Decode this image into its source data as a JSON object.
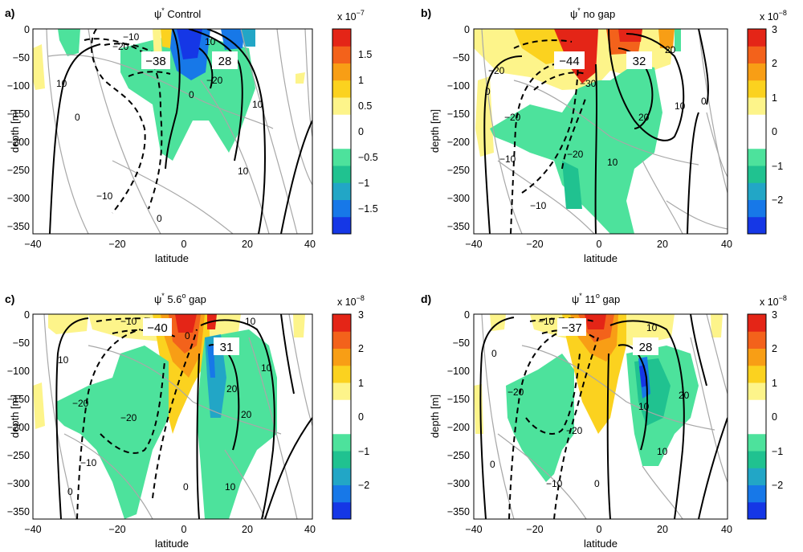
{
  "figure": {
    "colors": {
      "scale": [
        "#1537e6",
        "#1778e8",
        "#22a6c6",
        "#20c290",
        "#4de29c",
        "#ffffff",
        "#fdf48a",
        "#fbd21f",
        "#f89e15",
        "#f3621b",
        "#e42517"
      ],
      "contour": "#000000",
      "background_contour": "#a8a8a8"
    },
    "panels": [
      {
        "label": "a)",
        "title_prefix": "ψ",
        "title_star": "*",
        "title_rest": " Control",
        "xlabel": "latitude",
        "ylabel": "depth [m]",
        "xticks": [
          "−40",
          "−20",
          "0",
          "20",
          "40"
        ],
        "yticks": [
          "0",
          "−50",
          "−100",
          "−150",
          "−200",
          "−250",
          "−300",
          "−350"
        ],
        "colorbar_exponent_base": "x 10",
        "colorbar_exponent": "−7",
        "colorbar_ticks": [
          "1.5",
          "1",
          "0.5",
          "0",
          "−0.5",
          "−1",
          "−1.5"
        ],
        "extrema": [
          "−38",
          "28"
        ],
        "contour_labels": [
          "−10",
          "−20",
          "10",
          "0",
          "−10",
          "10",
          "0",
          "0",
          "10",
          "10",
          "−20"
        ]
      },
      {
        "label": "b)",
        "title_prefix": "ψ",
        "title_star": "*",
        "title_rest": " no gap",
        "xlabel": "latitude",
        "ylabel": "depth [m]",
        "xticks": [
          "−40",
          "−20",
          "0",
          "20",
          "40"
        ],
        "yticks": [
          "0",
          "−50",
          "−100",
          "−150",
          "−200",
          "−250",
          "−300",
          "−350"
        ],
        "colorbar_exponent_base": "x 10",
        "colorbar_exponent": "−8",
        "colorbar_ticks": [
          "3",
          "2",
          "1",
          "0",
          "−1",
          "−2"
        ],
        "extrema": [
          "−44",
          "32"
        ],
        "contour_labels": [
          "−20",
          "−30",
          "20",
          "10",
          "0",
          "−20",
          "−20",
          "−10",
          "10",
          "0",
          "−10",
          "20"
        ]
      },
      {
        "label": "c)",
        "title_prefix": "ψ",
        "title_star": "*",
        "title_rest": " 5.6",
        "title_sup": "o",
        "title_tail": " gap",
        "xlabel": "latitude",
        "ylabel": "depth [m]",
        "xticks": [
          "−40",
          "−20",
          "0",
          "20",
          "40"
        ],
        "yticks": [
          "0",
          "−50",
          "−100",
          "−150",
          "−200",
          "−250",
          "−300",
          "−350"
        ],
        "colorbar_exponent_base": "x 10",
        "colorbar_exponent": "−8",
        "colorbar_ticks": [
          "3",
          "2",
          "1",
          "0",
          "−1",
          "−2"
        ],
        "extrema": [
          "−40",
          "31"
        ],
        "contour_labels": [
          "−10",
          "10",
          "10",
          "−20",
          "−20",
          "20",
          "10",
          "0",
          "0",
          "−10",
          "10",
          "0",
          "20"
        ]
      },
      {
        "label": "d)",
        "title_prefix": "ψ",
        "title_star": "*",
        "title_rest": " 11",
        "title_sup": "o",
        "title_tail": " gap",
        "xlabel": "latitude",
        "ylabel": "depth [m]",
        "xticks": [
          "−40",
          "−20",
          "0",
          "20",
          "40"
        ],
        "yticks": [
          "0",
          "−50",
          "−100",
          "−150",
          "−200",
          "−250",
          "−300",
          "−350"
        ],
        "colorbar_exponent_base": "x 10",
        "colorbar_exponent": "−8",
        "colorbar_ticks": [
          "3",
          "2",
          "1",
          "0",
          "−1",
          "−2"
        ],
        "extrema": [
          "−37",
          "28"
        ],
        "contour_labels": [
          "−10",
          "−20",
          "−20",
          "10",
          "20",
          "0",
          "−10",
          "10",
          "0",
          "10",
          "0"
        ]
      }
    ]
  },
  "chart_data": [
    {
      "type": "heatmap",
      "panel": "a)",
      "title": "ψ* Control",
      "xlabel": "latitude",
      "ylabel": "depth [m]",
      "xlim": [
        -40,
        40
      ],
      "ylim": [
        -360,
        0
      ],
      "colorbar": {
        "range": [
          -2e-07,
          2e-07
        ],
        "step": 2.5e-08,
        "ticks": [
          -1.5e-07,
          -1e-07,
          -5e-08,
          0,
          5e-08,
          1e-07,
          1.5e-07
        ],
        "exponent_label": "x 10^-7"
      },
      "contours": {
        "max": 28,
        "min": -38,
        "levels_labelled": [
          -20,
          -10,
          0,
          10
        ]
      }
    },
    {
      "type": "heatmap",
      "panel": "b)",
      "title": "ψ* no gap",
      "xlabel": "latitude",
      "ylabel": "depth [m]",
      "xlim": [
        -40,
        40
      ],
      "ylim": [
        -360,
        0
      ],
      "colorbar": {
        "range": [
          -3e-08,
          3e-08
        ],
        "step": 5e-09,
        "ticks": [
          -2e-08,
          -1e-08,
          0,
          1e-08,
          2e-08,
          3e-08
        ],
        "exponent_label": "x 10^-8"
      },
      "contours": {
        "max": 32,
        "min": -44,
        "levels_labelled": [
          -30,
          -20,
          -10,
          0,
          10,
          20
        ]
      }
    },
    {
      "type": "heatmap",
      "panel": "c)",
      "title": "ψ* 5.6° gap",
      "xlabel": "latitude",
      "ylabel": "depth [m]",
      "xlim": [
        -40,
        40
      ],
      "ylim": [
        -360,
        0
      ],
      "colorbar": {
        "range": [
          -3e-08,
          3e-08
        ],
        "step": 5e-09,
        "ticks": [
          -2e-08,
          -1e-08,
          0,
          1e-08,
          2e-08,
          3e-08
        ],
        "exponent_label": "x 10^-8"
      },
      "contours": {
        "max": 31,
        "min": -40,
        "levels_labelled": [
          -20,
          -10,
          0,
          10,
          20
        ]
      }
    },
    {
      "type": "heatmap",
      "panel": "d)",
      "title": "ψ* 11° gap",
      "xlabel": "latitude",
      "ylabel": "depth [m]",
      "xlim": [
        -40,
        40
      ],
      "ylim": [
        -360,
        0
      ],
      "colorbar": {
        "range": [
          -3e-08,
          3e-08
        ],
        "step": 5e-09,
        "ticks": [
          -2e-08,
          -1e-08,
          0,
          1e-08,
          2e-08,
          3e-08
        ],
        "exponent_label": "x 10^-8"
      },
      "contours": {
        "max": 28,
        "min": -37,
        "levels_labelled": [
          -20,
          -10,
          0,
          10,
          20
        ]
      }
    }
  ]
}
